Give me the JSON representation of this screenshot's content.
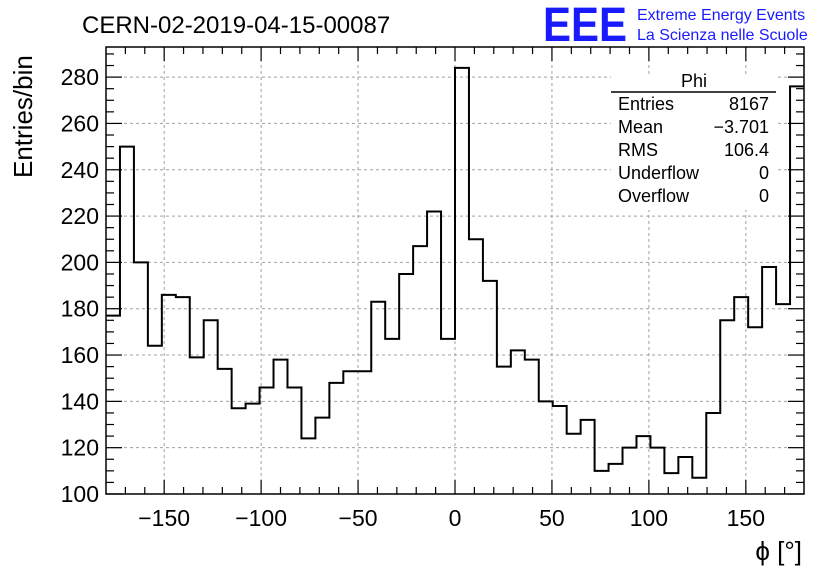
{
  "header": {
    "run_title": "CERN-02-2019-04-15-00087",
    "logo_mark": "EEE",
    "logo_line1": "Extreme Energy Events",
    "logo_line2": "La Scienza nelle Scuole"
  },
  "colors": {
    "logo": "#1a1aff",
    "histogram": "#000000",
    "grid": "#a0a0a0"
  },
  "stats": {
    "title": "Phi",
    "rows": [
      {
        "label": "Entries",
        "value": "8167"
      },
      {
        "label": "Mean",
        "value": "−3.701"
      },
      {
        "label": "RMS",
        "value": "106.4"
      },
      {
        "label": "Underflow",
        "value": "0"
      },
      {
        "label": "Overflow",
        "value": "0"
      }
    ]
  },
  "chart_data": {
    "type": "histogram",
    "title": "CERN-02-2019-04-15-00087",
    "xlabel": "ϕ [°]",
    "ylabel": "Entries/bin",
    "xlim": [
      -180,
      180
    ],
    "ylim": [
      100,
      293
    ],
    "grid": true,
    "bin_width": 7.2,
    "x_ticks": [
      -150,
      -100,
      -50,
      0,
      50,
      100,
      150
    ],
    "x_tick_labels": [
      "−150",
      "−100",
      "−50",
      "0",
      "50",
      "100",
      "150"
    ],
    "y_ticks": [
      100,
      120,
      140,
      160,
      180,
      200,
      220,
      240,
      260,
      280
    ],
    "y_tick_labels": [
      "100",
      "120",
      "140",
      "160",
      "180",
      "200",
      "220",
      "240",
      "260",
      "280"
    ],
    "values": [
      177,
      250,
      200,
      164,
      186,
      185,
      159,
      175,
      154,
      137,
      139,
      146,
      158,
      146,
      124,
      133,
      148,
      153,
      153,
      183,
      167,
      195,
      207,
      222,
      167,
      284,
      210,
      192,
      155,
      162,
      158,
      140,
      138,
      126,
      132,
      110,
      113,
      120,
      125,
      120,
      109,
      116,
      107,
      135,
      175,
      185,
      172,
      198,
      182,
      276
    ]
  }
}
